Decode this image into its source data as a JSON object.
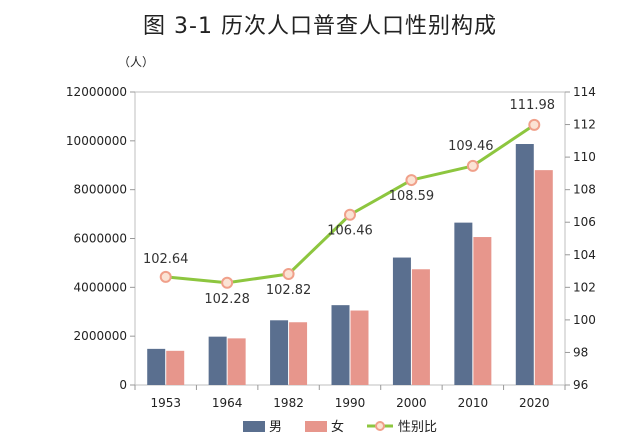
{
  "chart_data": {
    "type": "bar",
    "title": "图 3-1    历次人口普查人口性别构成",
    "y_unit_label": "（人）",
    "categories": [
      "1953",
      "1964",
      "1982",
      "1990",
      "2000",
      "2010",
      "2020"
    ],
    "series": [
      {
        "name": "男",
        "type": "bar",
        "axis": "left",
        "color": "#5a6f8f",
        "values": [
          1480000,
          1980000,
          2650000,
          3270000,
          5220000,
          6650000,
          9870000
        ]
      },
      {
        "name": "女",
        "type": "bar",
        "axis": "left",
        "color": "#e7968c",
        "values": [
          1400000,
          1910000,
          2570000,
          3050000,
          4740000,
          6060000,
          8800000
        ]
      },
      {
        "name": "性别比",
        "type": "line",
        "axis": "right",
        "color": "#8dc63f",
        "marker_color": "#f0a08a",
        "values": [
          102.64,
          102.28,
          102.82,
          106.46,
          108.59,
          109.46,
          111.98
        ],
        "labels": [
          "102.64",
          "102.28",
          "102.82",
          "106.46",
          "108.59",
          "109.46",
          "111.98"
        ]
      }
    ],
    "y_left": {
      "min": 0,
      "max": 12000000,
      "step": 2000000,
      "ticks": [
        "0",
        "2000000",
        "4000000",
        "6000000",
        "8000000",
        "10000000",
        "12000000"
      ]
    },
    "y_right": {
      "min": 96,
      "max": 114,
      "step": 2,
      "ticks": [
        "96",
        "98",
        "100",
        "102",
        "104",
        "106",
        "108",
        "110",
        "112",
        "114"
      ]
    },
    "grid": false,
    "legend_position": "bottom-center"
  }
}
